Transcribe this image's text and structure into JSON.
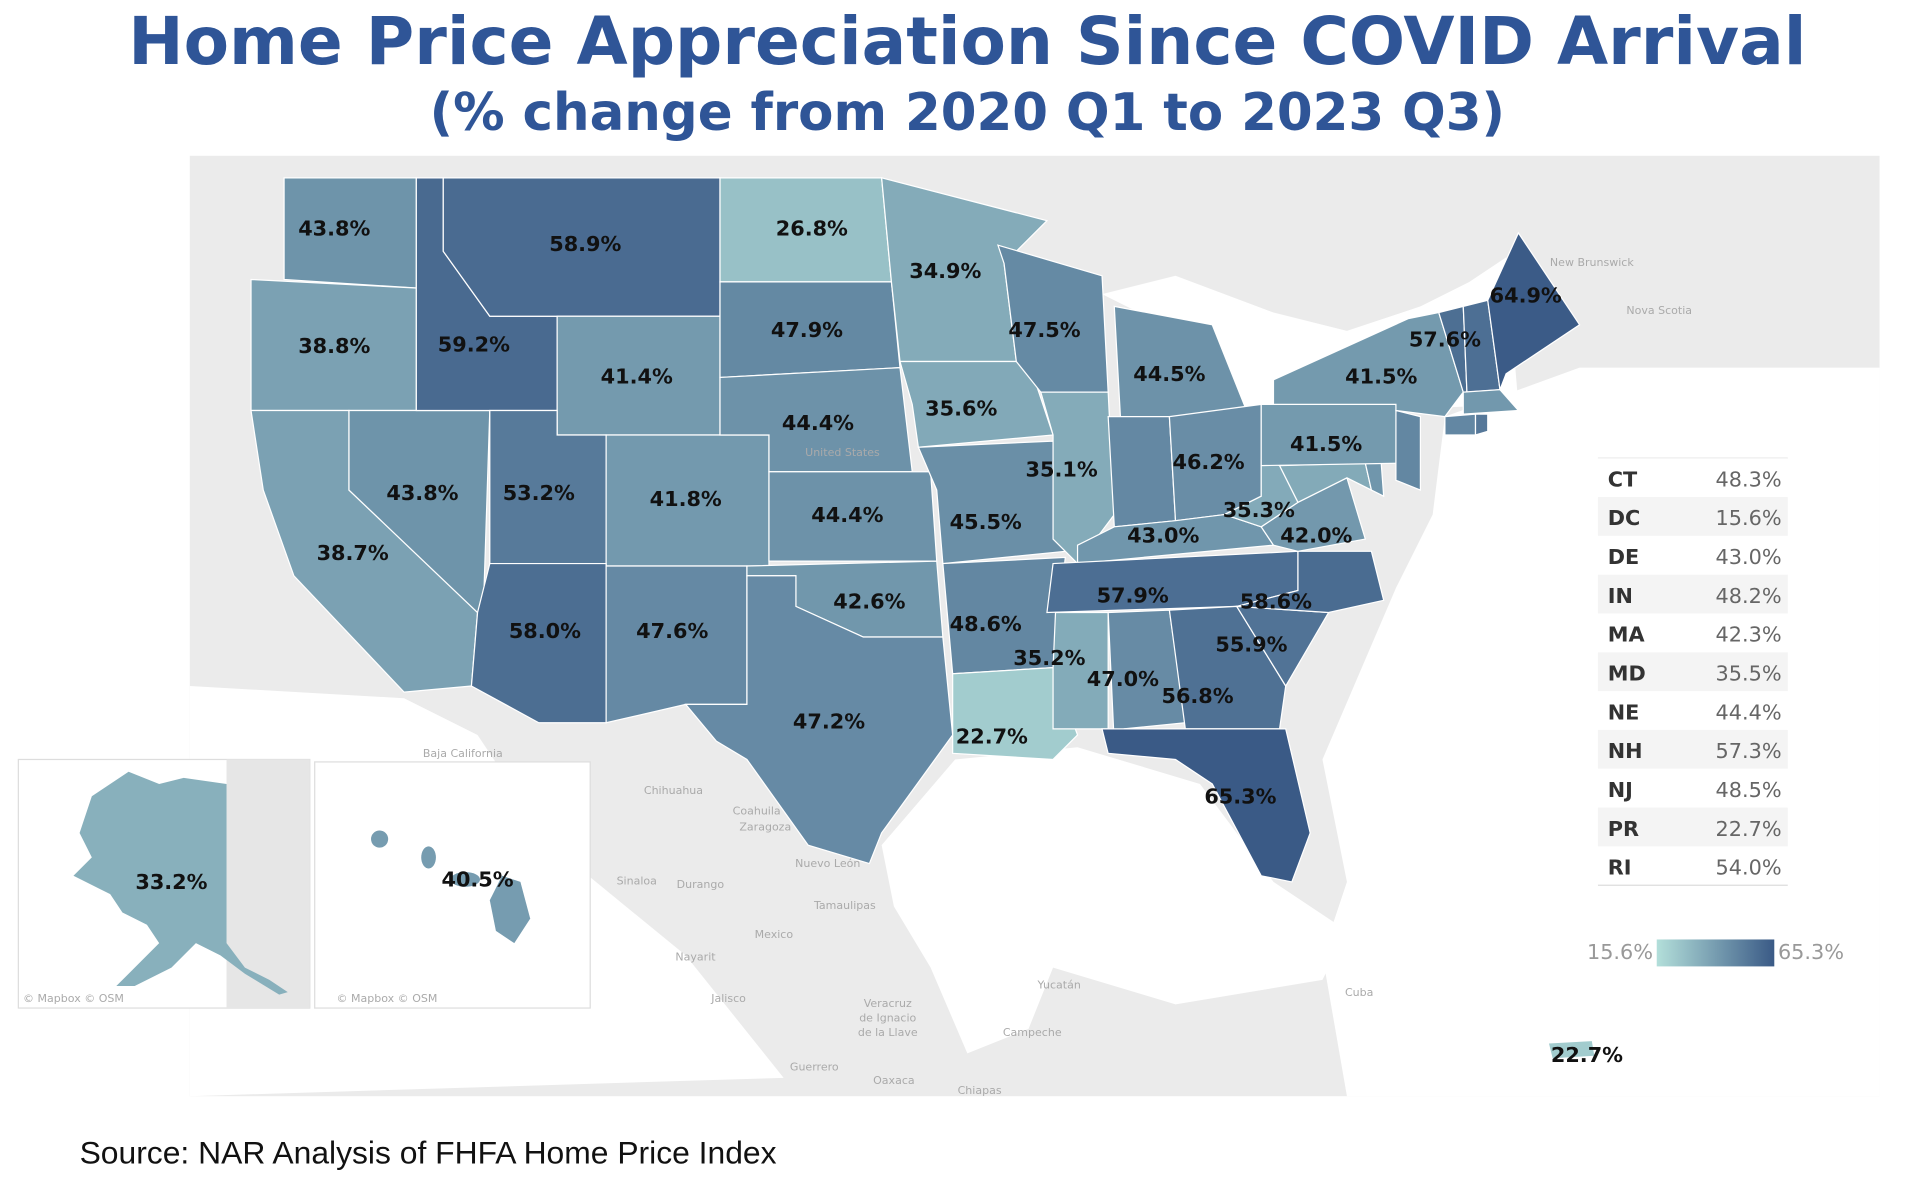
{
  "title": "Home Price Appreciation Since COVID Arrival",
  "subtitle": "(% change from 2020 Q1 to 2023 Q3)",
  "source": "Source: NAR Analysis of FHFA Home Price Index",
  "attribution": "© Mapbox © OSM",
  "colors": {
    "low": "#b3dfda",
    "high": "#3a5a86",
    "title": "#2f5597",
    "land": "#e9e9e9"
  },
  "map_labels": {
    "WA": "43.8%",
    "OR": "38.8%",
    "CA": "38.7%",
    "NV": "43.8%",
    "ID": "59.2%",
    "MT": "58.9%",
    "WY": "41.4%",
    "UT": "53.2%",
    "CO": "41.8%",
    "AZ": "58.0%",
    "NM": "47.6%",
    "ND": "26.8%",
    "SD": "47.9%",
    "NE": "44.4%",
    "KS": "44.4%",
    "OK": "42.6%",
    "TX": "47.2%",
    "MN": "34.9%",
    "IA": "35.6%",
    "MO": "45.5%",
    "AR": "48.6%",
    "LA": "22.7%",
    "WI": "47.5%",
    "IL": "35.1%",
    "MI": "44.5%",
    "OH": "46.2%",
    "KY": "43.0%",
    "TN": "57.9%",
    "MS": "35.2%",
    "AL": "47.0%",
    "GA": "56.8%",
    "FL": "65.3%",
    "SC": "55.9%",
    "NC": "58.6%",
    "VA": "42.0%",
    "WV": "35.3%",
    "PA": "41.5%",
    "NY": "41.5%",
    "VT": "57.6%",
    "ME": "64.9%",
    "AK": "33.2%",
    "HI": "40.5%",
    "PR": "22.7%"
  },
  "table": [
    {
      "state": "CT",
      "value": "48.3%"
    },
    {
      "state": "DC",
      "value": "15.6%"
    },
    {
      "state": "DE",
      "value": "43.0%"
    },
    {
      "state": "IN",
      "value": "48.2%"
    },
    {
      "state": "MA",
      "value": "42.3%"
    },
    {
      "state": "MD",
      "value": "35.5%"
    },
    {
      "state": "NE",
      "value": "44.4%"
    },
    {
      "state": "NH",
      "value": "57.3%"
    },
    {
      "state": "NJ",
      "value": "48.5%"
    },
    {
      "state": "PR",
      "value": "22.7%"
    },
    {
      "state": "RI",
      "value": "54.0%"
    }
  ],
  "legend": {
    "min": "15.6%",
    "max": "65.3%",
    "min_value": 15.6,
    "max_value": 65.3
  },
  "places": {
    "us": "United States",
    "mexico": "Mexico",
    "chihuahua": "Chihuahua",
    "coahuila": "Coahuila de",
    "coahuila2": "Zaragoza",
    "nuevo_leon": "Nuevo León",
    "sinaloa": "Sinaloa",
    "durango": "Durango",
    "tamaulipas": "Tamaulipas",
    "nayarit": "Nayarit",
    "jalisco": "Jalisco",
    "veracruz": "Veracruz",
    "veracruz2": "de Ignacio",
    "veracruz3": "de la Llave",
    "campeche": "Campeche",
    "yucatan": "Yucatán",
    "cuba": "Cuba",
    "new_brunswick": "New Brunswick",
    "nova_scotia": "Nova Scotia",
    "baja": "Baja California",
    "guerrero": "Guerrero",
    "oaxaca": "Oaxaca",
    "chiapas": "Chiapas"
  }
}
